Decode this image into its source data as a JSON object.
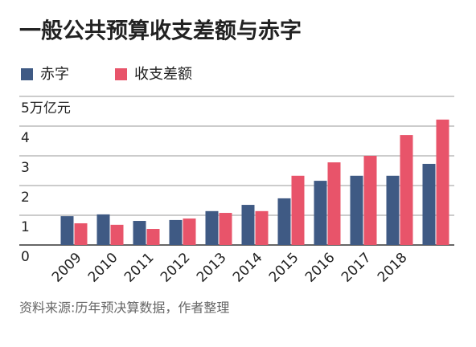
{
  "chart_data": {
    "type": "bar",
    "title": "一般公共预算收支差额与赤字",
    "categories": [
      "2009",
      "2010",
      "2011",
      "2012",
      "2013",
      "2014",
      "2015",
      "2016",
      "2017",
      "2018",
      null
    ],
    "series": [
      {
        "name": "赤字",
        "color": "#3f5a84",
        "values": [
          0.97,
          1.03,
          0.81,
          0.84,
          1.14,
          1.35,
          1.57,
          2.16,
          2.33,
          2.33,
          2.73
        ]
      },
      {
        "name": "收支差额",
        "color": "#e8546a",
        "values": [
          0.73,
          0.68,
          0.54,
          0.89,
          1.08,
          1.14,
          2.33,
          2.78,
          3.0,
          3.7,
          4.22
        ]
      }
    ],
    "ylim": [
      0,
      5
    ],
    "yticks": [
      0,
      1,
      2,
      3,
      4,
      {
        "value": 5,
        "label": "5万亿元"
      }
    ],
    "grid": true,
    "source": "资料来源:历年预决算数据，作者整理"
  }
}
